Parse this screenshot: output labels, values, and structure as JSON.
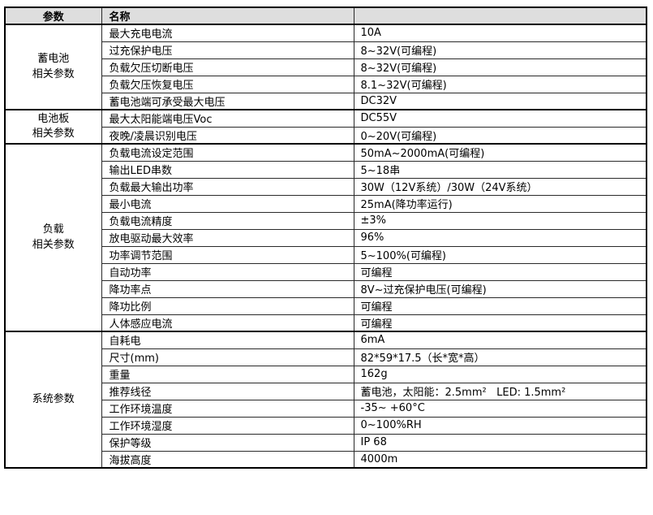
{
  "colors": {
    "page_bg": "#ffffff",
    "header_bg": "#dedede",
    "border": "#2a2a2a",
    "outer_border": "#000000",
    "text": "#000000"
  },
  "table": {
    "columns": [
      {
        "label": "参数"
      },
      {
        "label": "名称"
      },
      {
        "label": ""
      }
    ],
    "groups": [
      {
        "param": "蓄电池\n相关参数",
        "rows": [
          {
            "name": "最大充电电流",
            "value": "10A"
          },
          {
            "name": "过充保护电压",
            "value": "8~32V(可编程)"
          },
          {
            "name": "负载欠压切断电压",
            "value": "8~32V(可编程)"
          },
          {
            "name": "负载欠压恢复电压",
            "value": "8.1~32V(可编程)"
          },
          {
            "name": "蓄电池端可承受最大电压",
            "value": "DC32V"
          }
        ]
      },
      {
        "param": "电池板\n相关参数",
        "rows": [
          {
            "name": "最大太阳能端电压Voc",
            "value": "DC55V"
          },
          {
            "name": "夜晚/凌晨识别电压",
            "value": "0~20V(可编程)"
          }
        ]
      },
      {
        "param": "负载\n相关参数",
        "rows": [
          {
            "name": "负载电流设定范围",
            "value": "50mA~2000mA(可编程)"
          },
          {
            "name": "输出LED串数",
            "value": "5~18串"
          },
          {
            "name": "负载最大输出功率",
            "value": "30W（12V系统）/30W（24V系统）"
          },
          {
            "name": "最小电流",
            "value": "25mA(降功率运行)"
          },
          {
            "name": "负载电流精度",
            "value": "±3%"
          },
          {
            "name": "放电驱动最大效率",
            "value": "96%"
          },
          {
            "name": "功率调节范围",
            "value": "5~100%(可编程)"
          },
          {
            "name": "自动功率",
            "value": "可编程"
          },
          {
            "name": "降功率点",
            "value": "8V~过充保护电压(可编程)"
          },
          {
            "name": "降功比例",
            "value": "可编程"
          },
          {
            "name": "人体感应电流",
            "value": "可编程"
          }
        ]
      },
      {
        "param": "系统参数",
        "rows": [
          {
            "name": "自耗电",
            "value": "6mA"
          },
          {
            "name": "尺寸(mm)",
            "value": "82*59*17.5（长*宽*高）"
          },
          {
            "name": "重量",
            "value": "162g"
          },
          {
            "name": "推荐线径",
            "value": "蓄电池，太阳能：2.5mm²   LED: 1.5mm²"
          },
          {
            "name": "工作环境温度",
            "value": "-35~ +60°C"
          },
          {
            "name": "工作环境湿度",
            "value": "0~100%RH"
          },
          {
            "name": "保护等级",
            "value": "IP 68"
          },
          {
            "name": "海拔高度",
            "value": "4000m"
          }
        ]
      }
    ]
  }
}
